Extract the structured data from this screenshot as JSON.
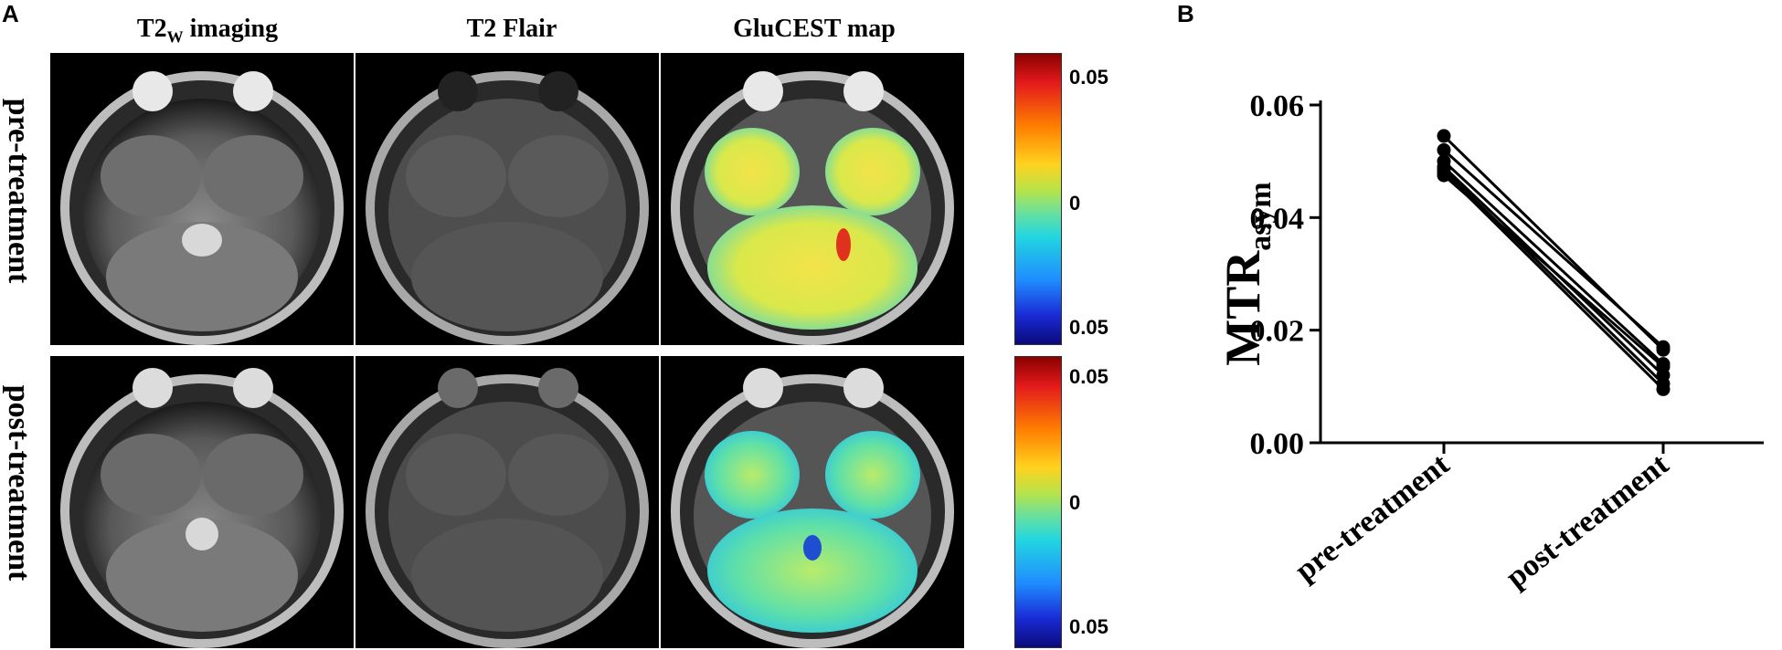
{
  "panel_a_label": "A",
  "panel_b_label": "B",
  "columns": [
    "T2W imaging",
    "T2 Flair",
    "GluCEST map"
  ],
  "column_title_parts": {
    "t2w_main": "T2",
    "t2w_sub": "W",
    "t2w_rest": " imaging"
  },
  "rows": [
    "pre-treatment",
    "post-treatment"
  ],
  "colorbar_ticks": [
    "0.05",
    "0",
    "0.05"
  ],
  "chart_data": {
    "type": "line",
    "categories": [
      "pre-treatment",
      "post-treatment"
    ],
    "ylabel_main": "MTR",
    "ylabel_sub": "asym",
    "ylim": [
      0,
      0.06
    ],
    "yticks": [
      0.0,
      0.02,
      0.04,
      0.06
    ],
    "ytick_labels": [
      "0.00",
      "0.02",
      "0.04",
      "0.06"
    ],
    "series": [
      {
        "values": [
          0.0545,
          0.0165
        ]
      },
      {
        "values": [
          0.052,
          0.017
        ]
      },
      {
        "values": [
          0.05,
          0.014
        ]
      },
      {
        "values": [
          0.049,
          0.012
        ]
      },
      {
        "values": [
          0.0485,
          0.0105
        ]
      },
      {
        "values": [
          0.048,
          0.0095
        ]
      },
      {
        "values": [
          0.0475,
          0.0135
        ]
      }
    ]
  }
}
